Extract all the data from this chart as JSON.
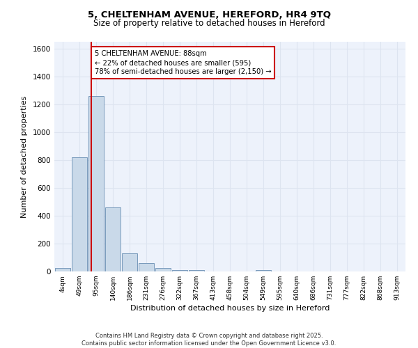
{
  "title_line1": "5, CHELTENHAM AVENUE, HEREFORD, HR4 9TQ",
  "title_line2": "Size of property relative to detached houses in Hereford",
  "xlabel": "Distribution of detached houses by size in Hereford",
  "ylabel": "Number of detached properties",
  "bar_categories": [
    "4sqm",
    "49sqm",
    "95sqm",
    "140sqm",
    "186sqm",
    "231sqm",
    "276sqm",
    "322sqm",
    "367sqm",
    "413sqm",
    "458sqm",
    "504sqm",
    "549sqm",
    "595sqm",
    "640sqm",
    "686sqm",
    "731sqm",
    "777sqm",
    "822sqm",
    "868sqm",
    "913sqm"
  ],
  "bar_values": [
    25,
    820,
    1260,
    460,
    130,
    60,
    25,
    12,
    10,
    0,
    0,
    0,
    12,
    0,
    0,
    0,
    0,
    0,
    0,
    0,
    0
  ],
  "bar_color": "#c9d9e9",
  "bar_edge_color": "#7799bb",
  "grid_color": "#dde4f0",
  "background_color": "#edf2fb",
  "vline_x_idx": 1.72,
  "vline_color": "#cc0000",
  "annotation_text": "5 CHELTENHAM AVENUE: 88sqm\n← 22% of detached houses are smaller (595)\n78% of semi-detached houses are larger (2,150) →",
  "annotation_box_facecolor": "#ffffff",
  "annotation_box_edgecolor": "#cc0000",
  "ylim": [
    0,
    1650
  ],
  "yticks": [
    0,
    200,
    400,
    600,
    800,
    1000,
    1200,
    1400,
    1600
  ],
  "footer_line1": "Contains HM Land Registry data © Crown copyright and database right 2025.",
  "footer_line2": "Contains public sector information licensed under the Open Government Licence v3.0."
}
